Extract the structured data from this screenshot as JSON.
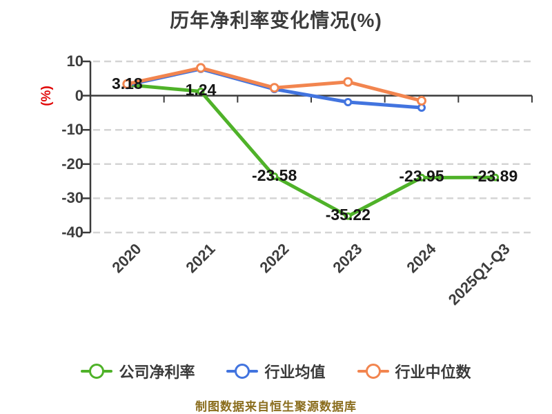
{
  "footer": "制图数据来自恒生聚源数据库",
  "colors": {
    "background": "#ffffff",
    "title_text": "#3c3c3c",
    "axis_line": "#3a3a3a",
    "axis_label_text": "#3d3d3d",
    "grid_line": "#d4d4d4",
    "data_label_text": "#161616",
    "y_unit_text": "#e10a0a",
    "footer_text": "#8a6d1d",
    "marker_fill": "#ffffff",
    "series_green": "#4fb229",
    "series_blue": "#4274df",
    "series_orange": "#f2854f"
  },
  "chart_data": {
    "type": "line",
    "title": "历年净利率变化情况(%)",
    "xlabel": "",
    "ylabel": "(%)",
    "categories": [
      "2020",
      "2021",
      "2022",
      "2023",
      "2024",
      "2025Q1-Q3"
    ],
    "series": [
      {
        "name": "公司净利率",
        "color": "#4fb229",
        "values": [
          3.18,
          1.24,
          -23.58,
          -35.22,
          -23.95,
          -23.89
        ],
        "show_labels": true,
        "marker_radius": 4
      },
      {
        "name": "行业均值",
        "color": "#4274df",
        "values": [
          3.1,
          7.8,
          1.9,
          -1.9,
          -3.5,
          null
        ],
        "show_labels": false,
        "marker_radius": 4.5
      },
      {
        "name": "行业中位数",
        "color": "#f2854f",
        "values": [
          3.4,
          8.1,
          2.3,
          4.0,
          -1.5,
          null
        ],
        "show_labels": false,
        "marker_radius": 5.5
      }
    ],
    "ylim": [
      -40,
      10
    ],
    "y_ticks": [
      10,
      0,
      -10,
      -20,
      -30,
      -40
    ],
    "grid": "horizontal dashed, solid dark line at zero with ticks",
    "legend_position": "bottom"
  }
}
